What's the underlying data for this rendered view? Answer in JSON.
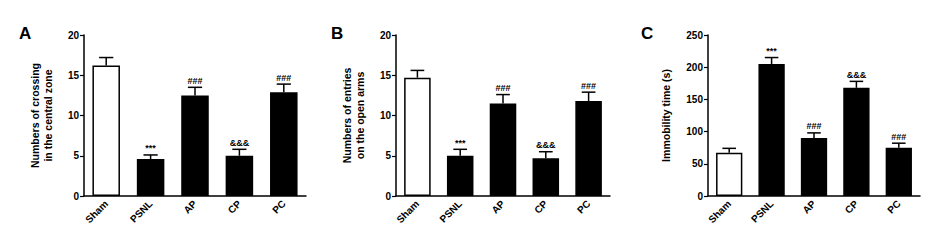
{
  "chart_data": [
    {
      "type": "bar",
      "panel_label": "A",
      "ylabel": "Numbers of crossing\nin the central zone",
      "categories": [
        "Sham",
        "PSNL",
        "AP",
        "CP",
        "PC"
      ],
      "values": [
        16.2,
        4.6,
        12.5,
        5.0,
        12.9
      ],
      "errors": [
        1.0,
        0.5,
        1.0,
        0.8,
        1.0
      ],
      "annotations": [
        null,
        "***",
        "###",
        "&&&",
        "###"
      ],
      "colors": [
        "#ffffff",
        "#000000",
        "#000000",
        "#000000",
        "#000000"
      ],
      "ylim": [
        0,
        20
      ],
      "yticks": [
        0,
        5,
        10,
        15,
        20
      ],
      "grid": false
    },
    {
      "type": "bar",
      "panel_label": "B",
      "ylabel": "Numbers of entries\non the open arms",
      "categories": [
        "Sham",
        "PSNL",
        "AP",
        "CP",
        "PC"
      ],
      "values": [
        14.7,
        5.0,
        11.5,
        4.7,
        11.8
      ],
      "errors": [
        0.9,
        0.8,
        1.1,
        0.8,
        1.1
      ],
      "annotations": [
        null,
        "***",
        "###",
        "&&&",
        "###"
      ],
      "colors": [
        "#ffffff",
        "#000000",
        "#000000",
        "#000000",
        "#000000"
      ],
      "ylim": [
        0,
        20
      ],
      "yticks": [
        0,
        5,
        10,
        15,
        20
      ],
      "grid": false
    },
    {
      "type": "bar",
      "panel_label": "C",
      "ylabel": "Immobility time (s)",
      "categories": [
        "Sham",
        "PSNL",
        "AP",
        "CP",
        "PC"
      ],
      "values": [
        67,
        205,
        90,
        168,
        75
      ],
      "errors": [
        7,
        10,
        8,
        10,
        7
      ],
      "annotations": [
        null,
        "***",
        "###",
        "&&&",
        "###"
      ],
      "colors": [
        "#ffffff",
        "#000000",
        "#000000",
        "#000000",
        "#000000"
      ],
      "ylim": [
        0,
        250
      ],
      "yticks": [
        0,
        50,
        100,
        150,
        200,
        250
      ],
      "grid": false
    }
  ]
}
